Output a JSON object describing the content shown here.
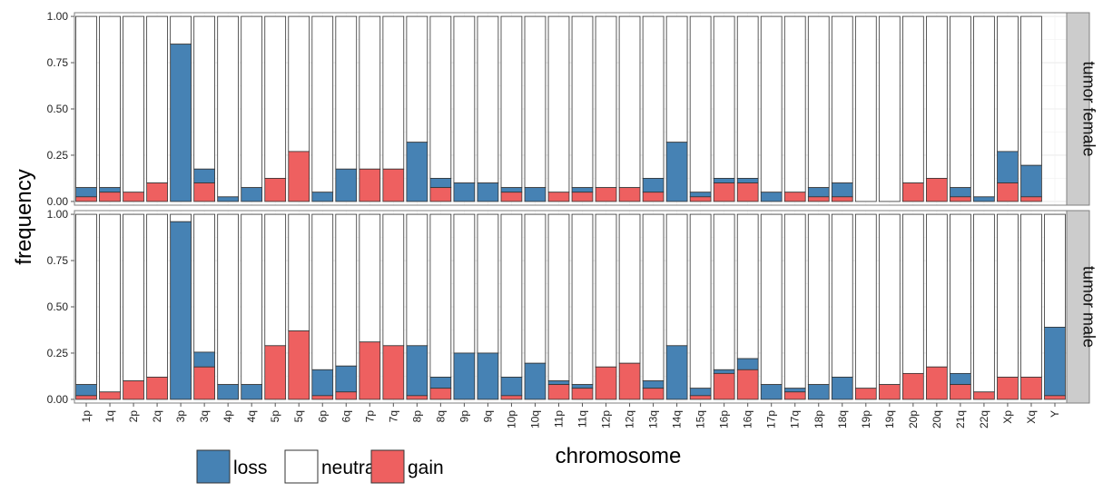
{
  "chart_data": {
    "type": "bar",
    "stacked": true,
    "xlabel": "chromosome",
    "ylabel": "frequency",
    "ylim": [
      0,
      1
    ],
    "yticks": [
      "0.00",
      "0.25",
      "0.50",
      "0.75",
      "1.00"
    ],
    "grid": true,
    "legend_position": "bottom-left",
    "categories": [
      "1p",
      "1q",
      "2p",
      "2q",
      "3p",
      "3q",
      "4p",
      "4q",
      "5p",
      "5q",
      "6p",
      "6q",
      "7p",
      "7q",
      "8p",
      "8q",
      "9p",
      "9q",
      "10p",
      "10q",
      "11p",
      "11q",
      "12p",
      "12q",
      "13q",
      "14q",
      "15q",
      "16p",
      "16q",
      "17p",
      "17q",
      "18p",
      "18q",
      "19p",
      "19q",
      "20p",
      "20q",
      "21q",
      "22q",
      "Xp",
      "Xq",
      "Y"
    ],
    "series_legend": [
      {
        "name": "loss",
        "color": "#4682b4"
      },
      {
        "name": "neutral",
        "color": "#ffffff"
      },
      {
        "name": "gain",
        "color": "#ee6060"
      }
    ],
    "panels": [
      {
        "strip": "tumor female",
        "gain": [
          0.025,
          0.05,
          0.05,
          0.1,
          0,
          0.1,
          0,
          0,
          0.125,
          0.27,
          0,
          0,
          0.175,
          0.175,
          0,
          0.075,
          0,
          0,
          0.05,
          0,
          0.05,
          0.05,
          0.075,
          0.075,
          0.05,
          0,
          0.025,
          0.1,
          0.1,
          0,
          0.05,
          0.025,
          0.025,
          0,
          0,
          0.1,
          0.125,
          0.025,
          0,
          0.1,
          0.025,
          null
        ],
        "loss": [
          0.05,
          0.025,
          0,
          0,
          0.85,
          0.075,
          0.025,
          0.075,
          0,
          0,
          0.05,
          0.175,
          0,
          0,
          0.32,
          0.05,
          0.1,
          0.1,
          0.025,
          0.075,
          0,
          0.025,
          0,
          0,
          0.075,
          0.32,
          0.025,
          0.025,
          0.025,
          0.05,
          0,
          0.05,
          0.075,
          0,
          0,
          0,
          0,
          0.05,
          0.025,
          0.17,
          0.17,
          null
        ]
      },
      {
        "strip": "tumor male",
        "gain": [
          0.02,
          0.04,
          0.1,
          0.12,
          0,
          0.175,
          0,
          0,
          0.29,
          0.37,
          0.02,
          0.04,
          0.31,
          0.29,
          0.02,
          0.06,
          0,
          0,
          0.02,
          0,
          0.08,
          0.06,
          0.175,
          0.195,
          0.06,
          0,
          0.02,
          0.14,
          0.16,
          0,
          0.04,
          0,
          0,
          0.06,
          0.08,
          0.14,
          0.175,
          0.08,
          0.04,
          0.12,
          0.12,
          0.02
        ],
        "loss": [
          0.06,
          0,
          0,
          0,
          0.96,
          0.08,
          0.08,
          0.08,
          0,
          0,
          0.14,
          0.14,
          0,
          0,
          0.27,
          0.06,
          0.25,
          0.25,
          0.1,
          0.195,
          0.02,
          0.02,
          0,
          0,
          0.04,
          0.29,
          0.04,
          0.02,
          0.06,
          0.08,
          0.02,
          0.08,
          0.12,
          0,
          0,
          0,
          0,
          0.06,
          0,
          0,
          0,
          0.37
        ]
      }
    ]
  }
}
